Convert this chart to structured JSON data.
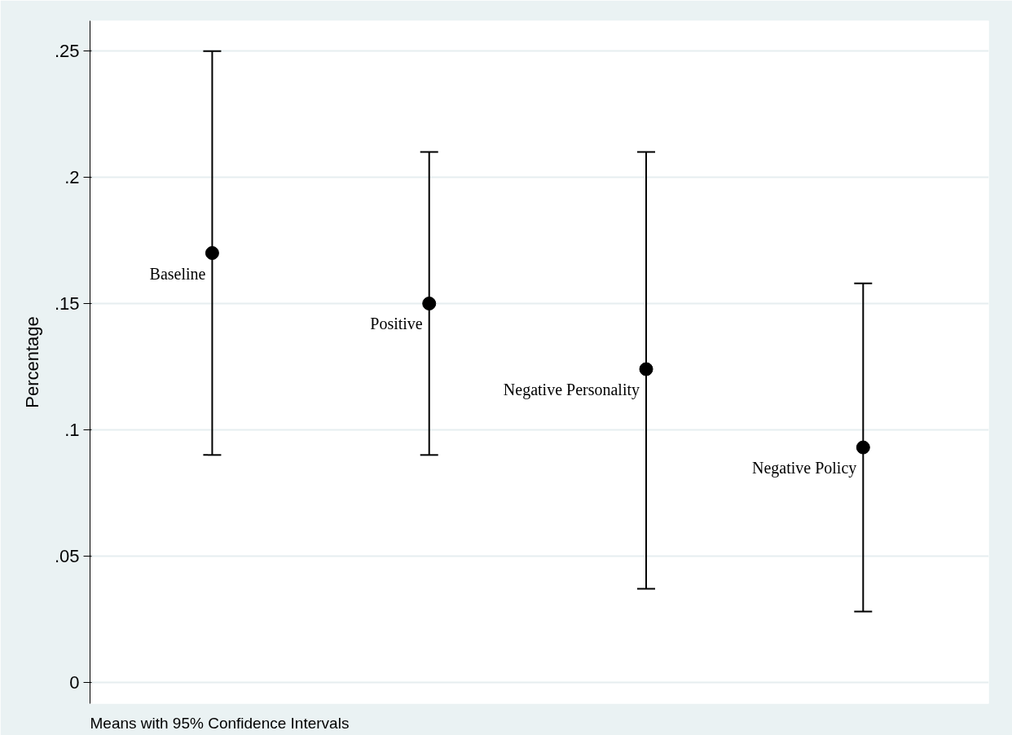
{
  "chart_data": {
    "type": "scatter",
    "ylabel": "Percentage",
    "categories": [
      "Baseline",
      "Positive",
      "Negative Personality",
      "Negative Policy"
    ],
    "values": [
      0.17,
      0.15,
      0.124,
      0.093
    ],
    "errors": [
      [
        0.09,
        0.25
      ],
      [
        0.09,
        0.21
      ],
      [
        0.037,
        0.21
      ],
      [
        0.028,
        0.158
      ]
    ],
    "color": "#000000",
    "marker": "circle",
    "ylim": [
      -0.0085,
      0.262
    ],
    "yticks": [
      0,
      {
        "value": 0.05,
        "label": ".05"
      },
      {
        "value": 0.1,
        "label": ".1"
      },
      {
        "value": 0.15,
        "label": ".15"
      },
      {
        "value": 0.2,
        "label": ".2"
      },
      {
        "value": 0.25,
        "label": ".25"
      }
    ],
    "grid": "y",
    "tick_labels": "y",
    "legend": false,
    "annotations": [
      "Means with 95% Confidence Intervals"
    ]
  }
}
